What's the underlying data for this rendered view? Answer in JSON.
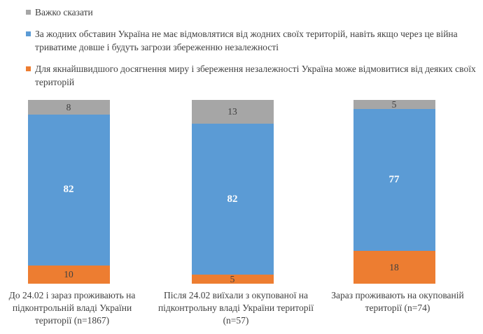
{
  "chart_data": {
    "type": "bar",
    "subtype": "stacked-column-100-percent",
    "title": "",
    "xlabel": "",
    "ylabel": "",
    "unit": "percent",
    "axis_visible": false,
    "grid": false,
    "legend_position": "top-left",
    "background_color": "#ffffff",
    "value_label_color": "#404040",
    "value_label_color_on_main": "#ffffff",
    "categories": [
      "До 24.02 і зараз проживають на підконтрольній владі України території (n=1867)",
      "Після 24.02 виїхали з окупованої на підконтрольну владі України території (n=57)",
      "Зараз проживають на окупованій території (n=74)"
    ],
    "series": [
      {
        "name": "Важко сказати",
        "color": "#a6a6a6",
        "values": [
          8,
          13,
          5
        ]
      },
      {
        "name": "За жодних обставин Україна не має відмовлятися від жодних своїх територій, навіть якщо через це війна триватиме довше і будуть загрози збереженню незалежності",
        "color": "#5b9bd5",
        "values": [
          82,
          82,
          77
        ]
      },
      {
        "name": "Для якнайшвидшого досягнення миру і збереження незалежності Україна може відмовитися від деяких своїх територій",
        "color": "#ed7d31",
        "values": [
          10,
          5,
          18
        ]
      }
    ],
    "stack_order_top_to_bottom": [
      0,
      1,
      2
    ],
    "main_series_index": 1,
    "ylim": [
      0,
      100
    ]
  }
}
